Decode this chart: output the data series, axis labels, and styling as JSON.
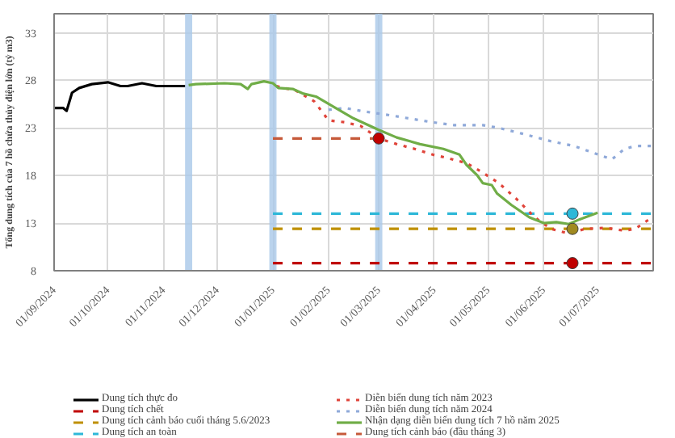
{
  "chart_data": {
    "type": "line",
    "ylabel": "Tổng dung tích của 7 hồ chứa thủy điện lớn (tỷ m3)",
    "xlim": [
      "2024-09-01",
      "2025-08-01"
    ],
    "xticks": [
      {
        "value": "2024-09-01",
        "label": "01/09/2024"
      },
      {
        "value": "2024-10-01",
        "label": "01/10/2024"
      },
      {
        "value": "2024-11-01",
        "label": "01/11/2024"
      },
      {
        "value": "2024-12-01",
        "label": "01/12/2024"
      },
      {
        "value": "2025-01-01",
        "label": "01/01/2025"
      },
      {
        "value": "2025-02-01",
        "label": "01/02/2025"
      },
      {
        "value": "2025-03-01",
        "label": "01/03/2025"
      },
      {
        "value": "2025-04-01",
        "label": "01/04/2025"
      },
      {
        "value": "2025-05-01",
        "label": "01/05/2025"
      },
      {
        "value": "2025-06-01",
        "label": "01/06/2025"
      },
      {
        "value": "2025-07-01",
        "label": "01/07/2025"
      }
    ],
    "ylim": [
      8,
      35
    ],
    "yticks": [
      8,
      13,
      18,
      23,
      28,
      33
    ],
    "grid": true,
    "legend": "bottom",
    "bands": [
      {
        "axis": "x",
        "from": "2024-11-13",
        "to": "2024-11-17",
        "color": "#a9c8e8"
      },
      {
        "axis": "x",
        "from": "2024-12-30",
        "to": "2025-01-03",
        "color": "#a9c8e8"
      },
      {
        "axis": "x",
        "from": "2025-02-27",
        "to": "2025-03-03",
        "color": "#a9c8e8"
      }
    ],
    "series": [
      {
        "name": "Dung tích thực đo",
        "color": "#000000",
        "line_style": "solid",
        "x": [
          "2024-09-01",
          "2024-09-06",
          "2024-09-08",
          "2024-09-11",
          "2024-09-15",
          "2024-09-22",
          "2024-10-01",
          "2024-10-08",
          "2024-10-12",
          "2024-10-20",
          "2024-10-28",
          "2024-11-01",
          "2024-11-13"
        ],
        "values": [
          25.1,
          25.1,
          24.8,
          26.7,
          27.2,
          27.6,
          27.8,
          27.4,
          27.4,
          27.7,
          27.4,
          27.4,
          27.4
        ]
      },
      {
        "name": "Dung tích chết",
        "color": "#c00000",
        "line_style": "dashed",
        "x": [
          "2025-01-01",
          "2025-08-01"
        ],
        "values": [
          8.8,
          8.8
        ]
      },
      {
        "name": "Dung tích cảnh báo cuối tháng 5.6/2023",
        "color": "#bf9000",
        "line_style": "dashed",
        "x": [
          "2025-01-01",
          "2025-08-01"
        ],
        "values": [
          12.4,
          12.4
        ]
      },
      {
        "name": "Dung tích an toàn",
        "color": "#2eb8d8",
        "line_style": "dashed",
        "x": [
          "2025-01-01",
          "2025-08-01"
        ],
        "values": [
          14.0,
          14.0
        ]
      },
      {
        "name": "Diễn biến dung tích năm 2023",
        "color": "#e0443a",
        "line_style": "dotted",
        "x": [
          "2025-01-03",
          "2025-01-14",
          "2025-01-24",
          "2025-02-01",
          "2025-02-10",
          "2025-02-19",
          "2025-03-01",
          "2025-03-11",
          "2025-03-21",
          "2025-03-31",
          "2025-04-07",
          "2025-04-19",
          "2025-04-28",
          "2025-05-07",
          "2025-05-17",
          "2025-05-27",
          "2025-06-05",
          "2025-06-15",
          "2025-06-24",
          "2025-07-06",
          "2025-07-16",
          "2025-07-22",
          "2025-08-01"
        ],
        "values": [
          27.4,
          26.9,
          25.8,
          23.8,
          23.6,
          23.2,
          21.9,
          21.3,
          20.8,
          20.2,
          19.9,
          19.3,
          18.3,
          17.2,
          15.5,
          13.6,
          12.4,
          11.9,
          12.4,
          12.5,
          12.2,
          12.4,
          13.7
        ]
      },
      {
        "name": "Diễn biến dung tích năm 2024",
        "color": "#8fa9d9",
        "line_style": "dotted",
        "x": [
          "2025-02-01",
          "2025-02-10",
          "2025-02-22",
          "2025-03-05",
          "2025-03-18",
          "2025-03-31",
          "2025-04-12",
          "2025-04-28",
          "2025-05-07",
          "2025-05-20",
          "2025-06-05",
          "2025-06-18",
          "2025-06-27",
          "2025-07-09",
          "2025-07-16",
          "2025-07-22",
          "2025-08-01"
        ],
        "values": [
          24.9,
          25.1,
          24.7,
          24.4,
          24.0,
          23.6,
          23.3,
          23.3,
          23.0,
          22.4,
          21.6,
          21.1,
          20.5,
          19.7,
          20.8,
          21.1,
          21.1
        ]
      },
      {
        "name": "Nhận dạng diễn biến dung tích 7 hồ năm 2025",
        "color": "#70ad47",
        "line_style": "solid",
        "x": [
          "2024-11-15",
          "2024-11-19",
          "2024-12-05",
          "2024-12-14",
          "2024-12-18",
          "2024-12-20",
          "2024-12-27",
          "2025-01-01",
          "2025-01-04",
          "2025-01-12",
          "2025-01-18",
          "2025-01-25",
          "2025-02-04",
          "2025-02-15",
          "2025-03-01",
          "2025-03-11",
          "2025-03-24",
          "2025-04-06",
          "2025-04-15",
          "2025-04-19",
          "2025-04-25",
          "2025-04-28",
          "2025-05-03",
          "2025-05-06",
          "2025-05-14",
          "2025-05-24",
          "2025-06-01",
          "2025-06-08",
          "2025-06-15",
          "2025-06-21",
          "2025-07-01"
        ],
        "values": [
          27.5,
          27.6,
          27.7,
          27.6,
          27.1,
          27.6,
          27.9,
          27.7,
          27.2,
          27.1,
          26.6,
          26.3,
          25.2,
          24.0,
          22.8,
          22.0,
          21.3,
          20.8,
          20.2,
          19.1,
          18.0,
          17.2,
          17.0,
          16.1,
          14.9,
          13.6,
          13.0,
          13.1,
          12.9,
          13.4,
          14.1
        ]
      },
      {
        "name": "Dung tích cảnh báo (đầu tháng 3)",
        "color": "#c65a3a",
        "line_style": "dashed",
        "x": [
          "2025-01-01",
          "2025-03-01"
        ],
        "values": [
          21.9,
          21.9
        ]
      },
      {
        "type": "scatter",
        "marker": "circle",
        "colors": [
          "#c00000",
          "#c00000",
          "#2eb8d8",
          "#a08a20"
        ],
        "x": [
          "2025-03-01",
          "2025-06-17",
          "2025-06-17",
          "2025-06-17"
        ],
        "values": [
          21.9,
          8.8,
          14.0,
          12.4
        ]
      }
    ]
  }
}
